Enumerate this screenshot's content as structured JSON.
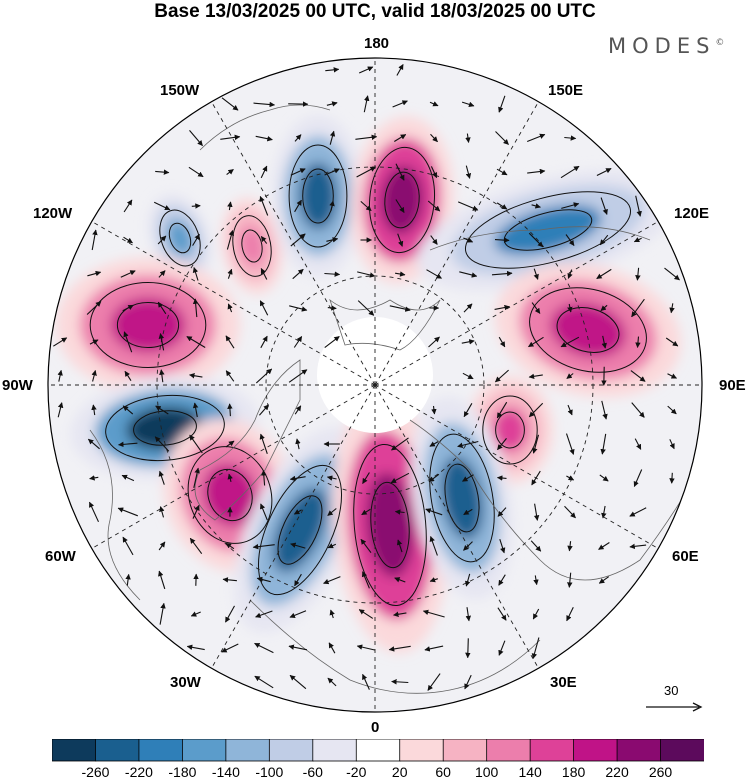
{
  "title": "Base 13/03/2025 00 UTC, valid 18/03/2025 00 UTC",
  "brand": "MODES",
  "brand_mark": "©",
  "longitude_labels": {
    "lon_180": "180",
    "lon_150e": "150E",
    "lon_120e": "120E",
    "lon_90e": "90E",
    "lon_60e": "60E",
    "lon_30e": "30E",
    "lon_0": "0",
    "lon_30w": "30W",
    "lon_60w": "60W",
    "lon_90w": "90W",
    "lon_120w": "120W",
    "lon_150w": "150W"
  },
  "reference_vector": {
    "label": "30"
  },
  "colorbar": {
    "ticks": [
      "-260",
      "-220",
      "-180",
      "-140",
      "-100",
      "-60",
      "-20",
      "20",
      "60",
      "100",
      "140",
      "180",
      "220",
      "260"
    ],
    "colors": [
      "#0d3a5c",
      "#1a5f8f",
      "#2f7fb8",
      "#5b9ccb",
      "#8fb5d9",
      "#c0cde6",
      "#e6e6f2",
      "#ffffff",
      "#fbd9db",
      "#f6b3c3",
      "#ec7eac",
      "#de4198",
      "#c01387",
      "#8a0a70",
      "#5c0a5c"
    ]
  },
  "anomaly_centers": [
    {
      "id": "neg-150w-a",
      "sign": "negative",
      "level": -140
    },
    {
      "id": "pos-150w-b",
      "sign": "positive",
      "level": 140
    },
    {
      "id": "neg-170w",
      "sign": "negative",
      "level": -220
    },
    {
      "id": "pos-170e",
      "sign": "positive",
      "level": 260
    },
    {
      "id": "neg-130e",
      "sign": "negative",
      "level": -180
    },
    {
      "id": "pos-100e",
      "sign": "positive",
      "level": 220
    },
    {
      "id": "pos-80e",
      "sign": "positive",
      "level": 180
    },
    {
      "id": "pos-100w",
      "sign": "positive",
      "level": 220
    },
    {
      "id": "neg-80w",
      "sign": "negative",
      "level": -260
    },
    {
      "id": "pos-50w",
      "sign": "positive",
      "level": 220
    },
    {
      "id": "neg-25w",
      "sign": "negative",
      "level": -220
    },
    {
      "id": "pos-0",
      "sign": "positive",
      "level": 260
    },
    {
      "id": "neg-25e",
      "sign": "negative",
      "level": -220
    }
  ]
}
